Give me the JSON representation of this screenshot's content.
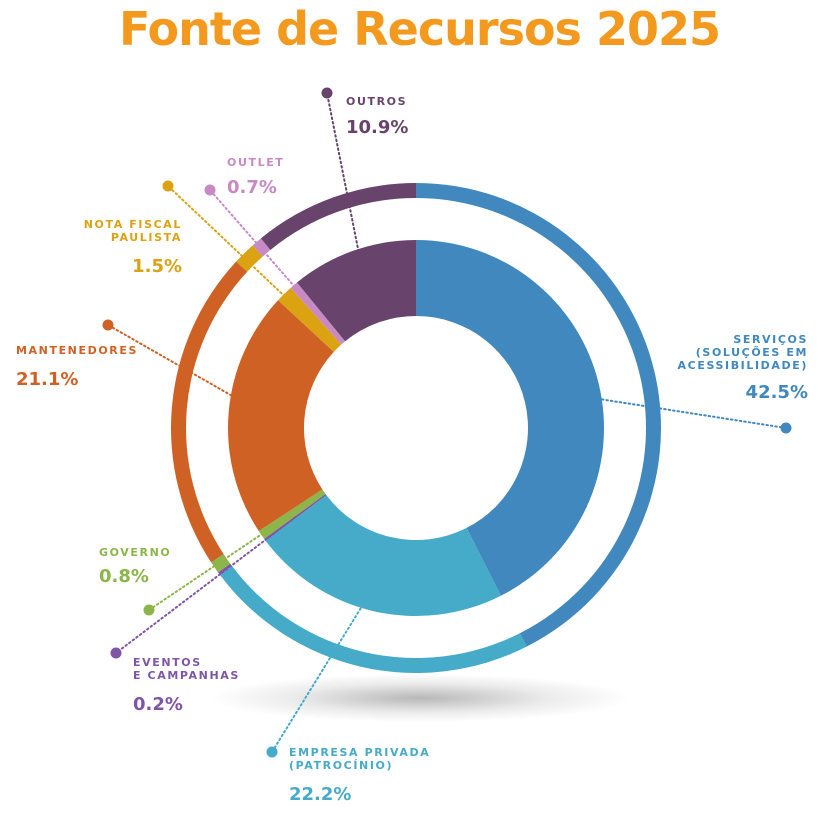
{
  "page": {
    "title": "Fonte de Recursos 2025"
  },
  "chart_data": {
    "type": "pie",
    "title": "Fonte de Recursos 2025",
    "series": [
      {
        "key": "servicos",
        "label_lines": [
          "SERVIÇOS",
          "(SOLUÇÕES EM",
          "ACESSIBILIDADE)"
        ],
        "value": 42.5,
        "display": "42.5%",
        "color": "#4088bd"
      },
      {
        "key": "empresa",
        "label_lines": [
          "EMPRESA PRIVADA",
          "(PATROCÍNIO)"
        ],
        "value": 22.2,
        "display": "22.2%",
        "color": "#45abc9"
      },
      {
        "key": "eventos",
        "label_lines": [
          "EVENTOS",
          "E CAMPANHAS"
        ],
        "value": 0.2,
        "display": "0.2%",
        "color": "#7f55a6"
      },
      {
        "key": "governo",
        "label_lines": [
          "GOVERNO"
        ],
        "value": 0.8,
        "display": "0.8%",
        "color": "#8cb54a"
      },
      {
        "key": "mantenedores",
        "label_lines": [
          "MANTENEDORES"
        ],
        "value": 21.1,
        "display": "21.1%",
        "color": "#cf6124"
      },
      {
        "key": "nota",
        "label_lines": [
          "NOTA FISCAL",
          "PAULISTA"
        ],
        "value": 1.5,
        "display": "1.5%",
        "color": "#dba312"
      },
      {
        "key": "outlet",
        "label_lines": [
          "OUTLET"
        ],
        "value": 0.7,
        "display": "0.7%",
        "color": "#c88ac4"
      },
      {
        "key": "outros",
        "label_lines": [
          "OUTROS"
        ],
        "value": 10.9,
        "display": "10.9%",
        "color": "#68446c"
      }
    ]
  }
}
